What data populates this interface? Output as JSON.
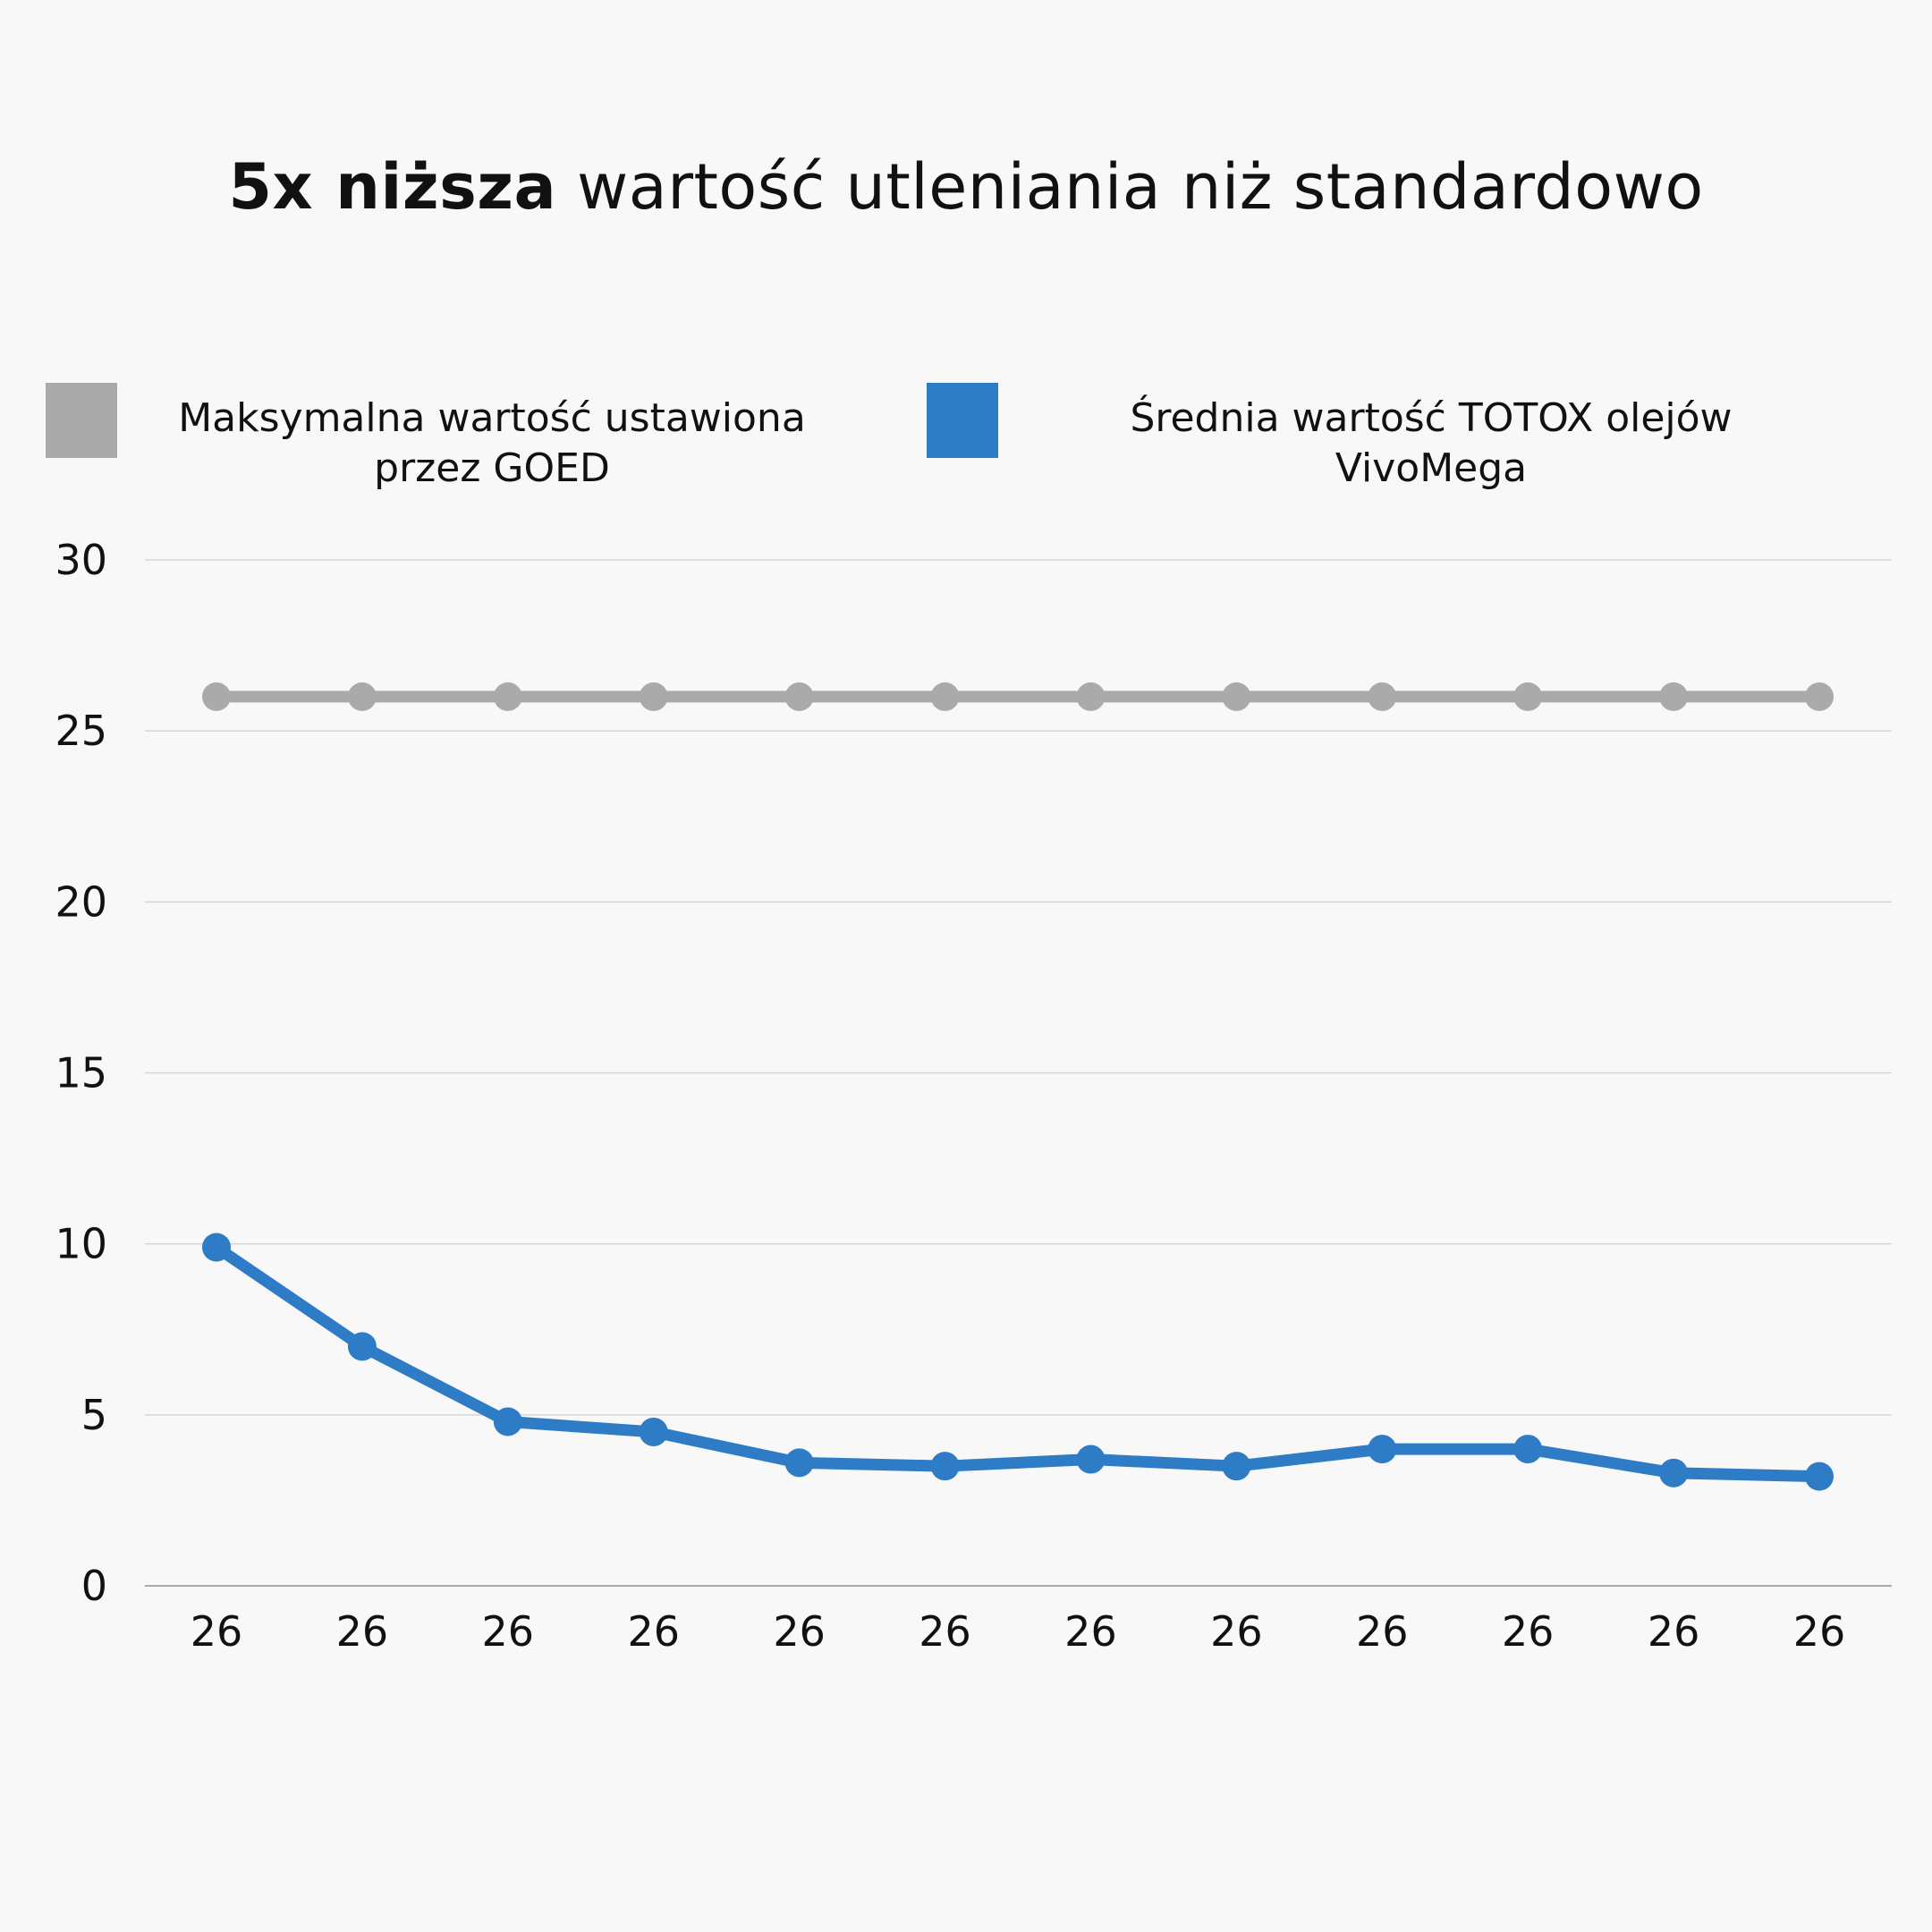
{
  "title_parts": {
    "bold": "5x niższa",
    "rest": " wartość utleniania niż standardowo"
  },
  "colors": {
    "goed": "#aaaaaa",
    "vivomega": "#2e7bc6",
    "grid": "#d6d6d6",
    "axis": "#aaaaaa"
  },
  "chart_data": {
    "type": "line",
    "title": "5x niższa wartość utleniania niż standardowo",
    "xlabel": "",
    "ylabel": "",
    "x": [
      "26",
      "26",
      "26",
      "26",
      "26",
      "26",
      "26",
      "26",
      "26",
      "26",
      "26",
      "26"
    ],
    "ylim": [
      0,
      30
    ],
    "yticks": [
      "0",
      "5",
      "10",
      "15",
      "20",
      "25",
      "30"
    ],
    "grid": true,
    "legend_position": "top",
    "series": [
      {
        "name": "Maksymalna wartość ustawiona przez GOED",
        "line1": "Maksymalna wartość ustawiona",
        "line2": "przez GOED",
        "color": "#aaaaaa",
        "values": [
          26,
          26,
          26,
          26,
          26,
          26,
          26,
          26,
          26,
          26,
          26,
          26
        ]
      },
      {
        "name": "Średnia wartość TOTOX olejów VivoMega",
        "line1": "Średnia wartość TOTOX olejów",
        "line2": "VivoMega",
        "color": "#2e7bc6",
        "values": [
          9.9,
          7.0,
          4.8,
          4.5,
          3.6,
          3.5,
          3.7,
          3.5,
          4.0,
          4.0,
          3.3,
          3.2
        ]
      }
    ]
  }
}
